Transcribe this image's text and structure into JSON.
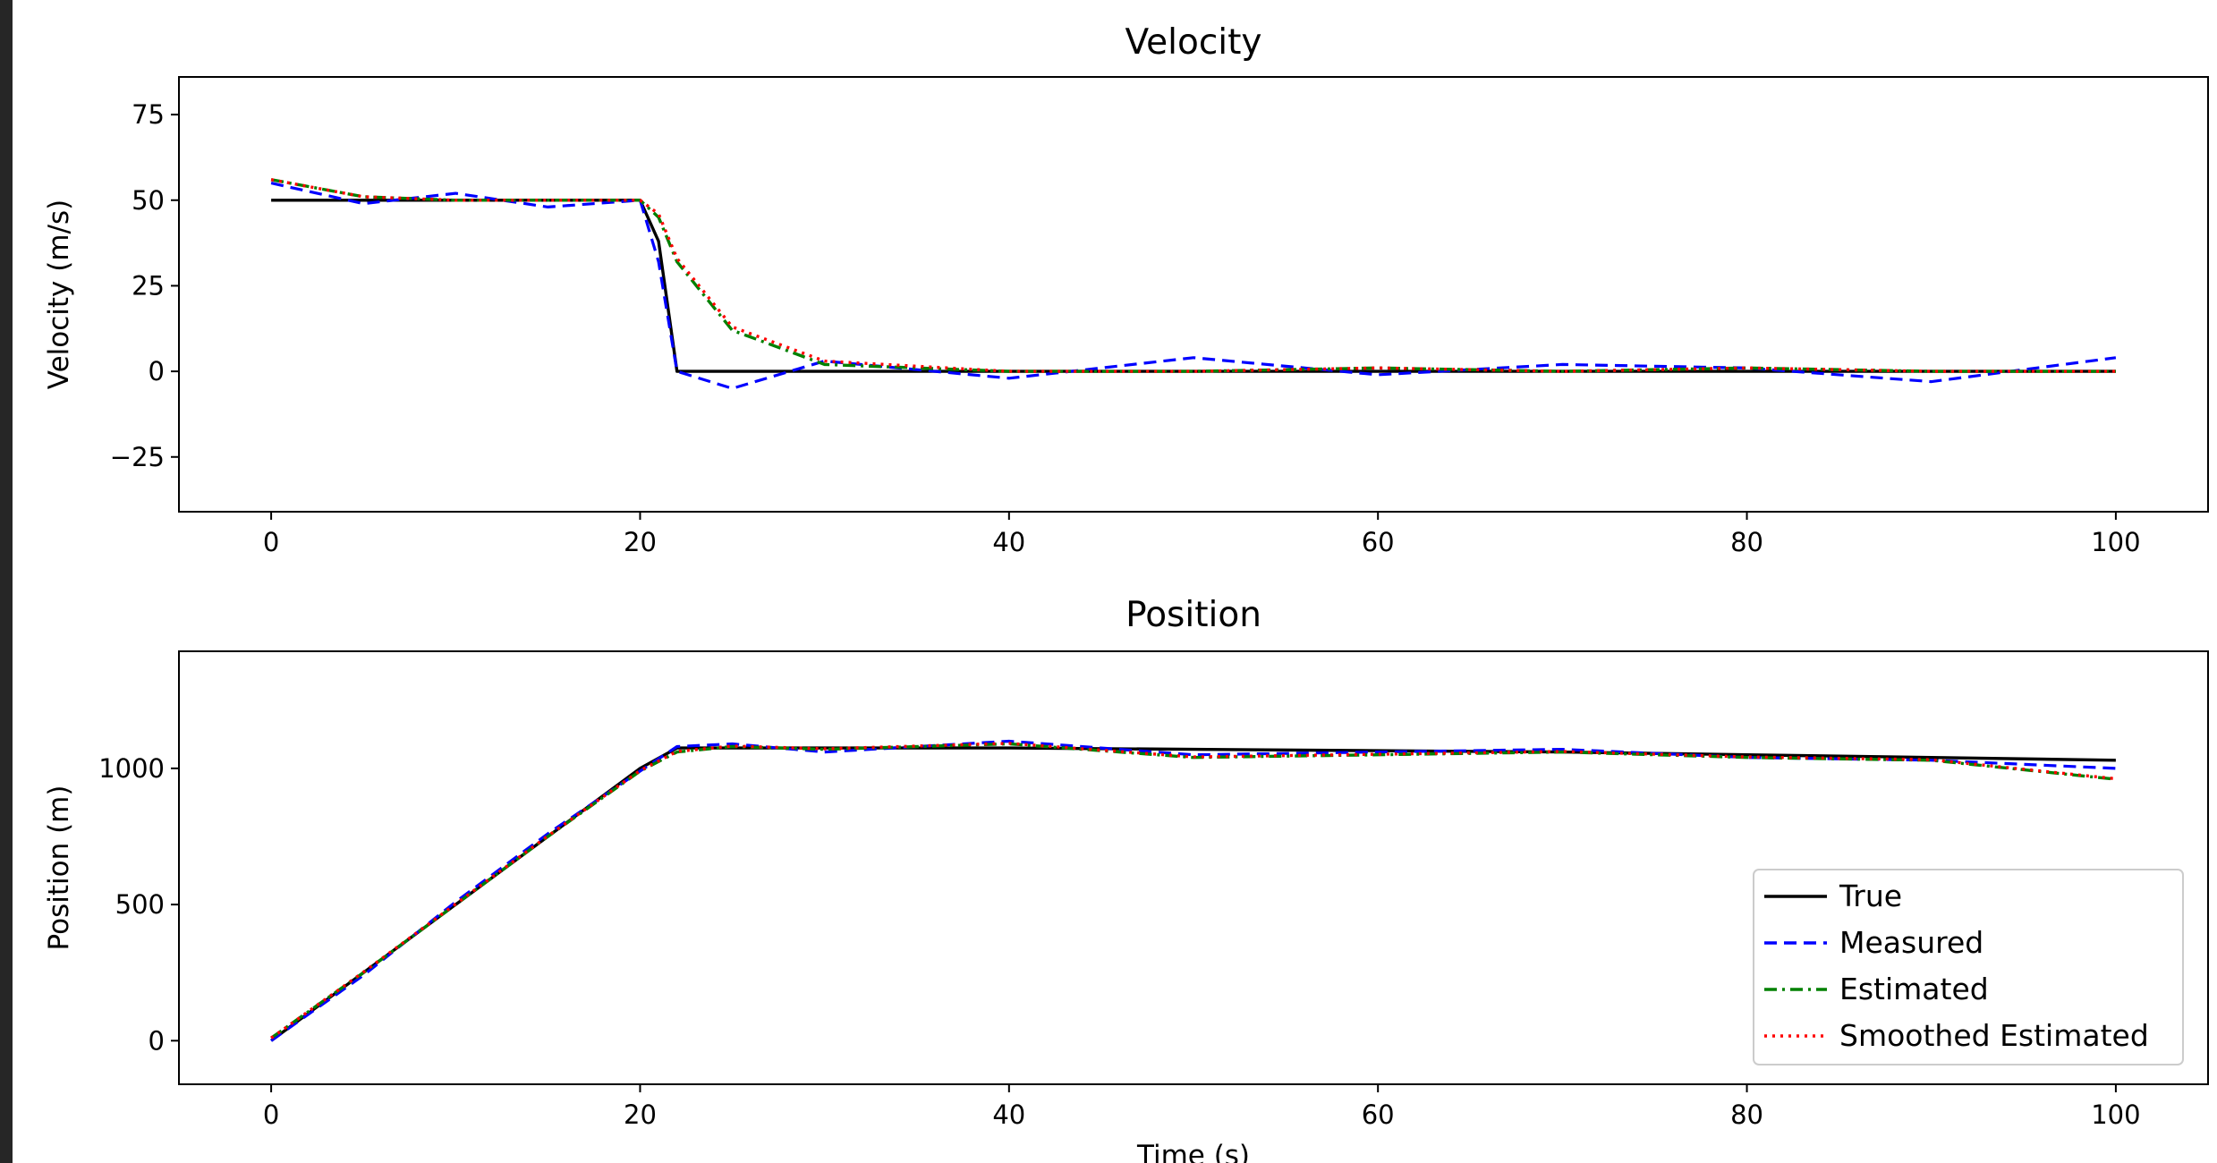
{
  "chart_data": [
    {
      "type": "line",
      "title": "Velocity",
      "xlabel": "",
      "ylabel": "Velocity (m/s)",
      "xlim": [
        -5,
        105
      ],
      "ylim": [
        -41,
        86
      ],
      "xticks": [
        0,
        20,
        40,
        60,
        80,
        100
      ],
      "yticks": [
        -25,
        0,
        25,
        50,
        75
      ],
      "x": [
        0,
        5,
        10,
        15,
        20,
        21,
        22,
        25,
        30,
        40,
        50,
        60,
        70,
        80,
        90,
        100
      ],
      "series": [
        {
          "name": "True",
          "color": "#000000",
          "style": "solid",
          "values": [
            50,
            50,
            50,
            50,
            50,
            38,
            0,
            0,
            0,
            0,
            0,
            0,
            0,
            0,
            0,
            0
          ]
        },
        {
          "name": "Measured",
          "color": "#0000ff",
          "style": "dashed",
          "values": [
            55,
            49,
            52,
            48,
            50,
            32,
            0,
            -5,
            3,
            -2,
            4,
            -1,
            2,
            1,
            -3,
            4
          ]
        },
        {
          "name": "Estimated",
          "color": "#008000",
          "style": "dashdot",
          "values": [
            56,
            51,
            50,
            50,
            50,
            45,
            32,
            12,
            2,
            0,
            0,
            1,
            0,
            1,
            0,
            0
          ]
        },
        {
          "name": "Smoothed Estimated",
          "color": "#ff0000",
          "style": "dotted",
          "values": [
            56,
            51,
            50,
            50,
            50,
            46,
            33,
            13,
            3,
            0,
            0,
            1,
            0,
            1,
            0,
            0
          ]
        }
      ]
    },
    {
      "type": "line",
      "title": "Position",
      "xlabel": "Time (s)",
      "ylabel": "Position (m)",
      "xlim": [
        -5,
        105
      ],
      "ylim": [
        -160,
        1430
      ],
      "xticks": [
        0,
        20,
        40,
        60,
        80,
        100
      ],
      "yticks": [
        0,
        500,
        1000
      ],
      "x": [
        0,
        5,
        10,
        15,
        20,
        22,
        25,
        30,
        40,
        50,
        60,
        70,
        80,
        90,
        100
      ],
      "series": [
        {
          "name": "True",
          "color": "#000000",
          "style": "solid",
          "values": [
            0,
            250,
            500,
            750,
            1000,
            1075,
            1075,
            1075,
            1075,
            1070,
            1065,
            1060,
            1050,
            1040,
            1030
          ]
        },
        {
          "name": "Measured",
          "color": "#0000ff",
          "style": "dashed",
          "values": [
            0,
            240,
            510,
            760,
            990,
            1080,
            1090,
            1060,
            1100,
            1050,
            1060,
            1070,
            1040,
            1030,
            1000
          ]
        },
        {
          "name": "Estimated",
          "color": "#008000",
          "style": "dashdot",
          "values": [
            10,
            250,
            500,
            750,
            990,
            1060,
            1080,
            1070,
            1090,
            1040,
            1050,
            1060,
            1040,
            1030,
            960
          ]
        },
        {
          "name": "Smoothed Estimated",
          "color": "#ff0000",
          "style": "dotted",
          "values": [
            10,
            252,
            502,
            752,
            992,
            1062,
            1082,
            1072,
            1092,
            1042,
            1052,
            1062,
            1042,
            1032,
            962
          ]
        }
      ],
      "legend": {
        "placement": "lower-right",
        "entries": [
          "True",
          "Measured",
          "Estimated",
          "Smoothed Estimated"
        ]
      }
    }
  ]
}
